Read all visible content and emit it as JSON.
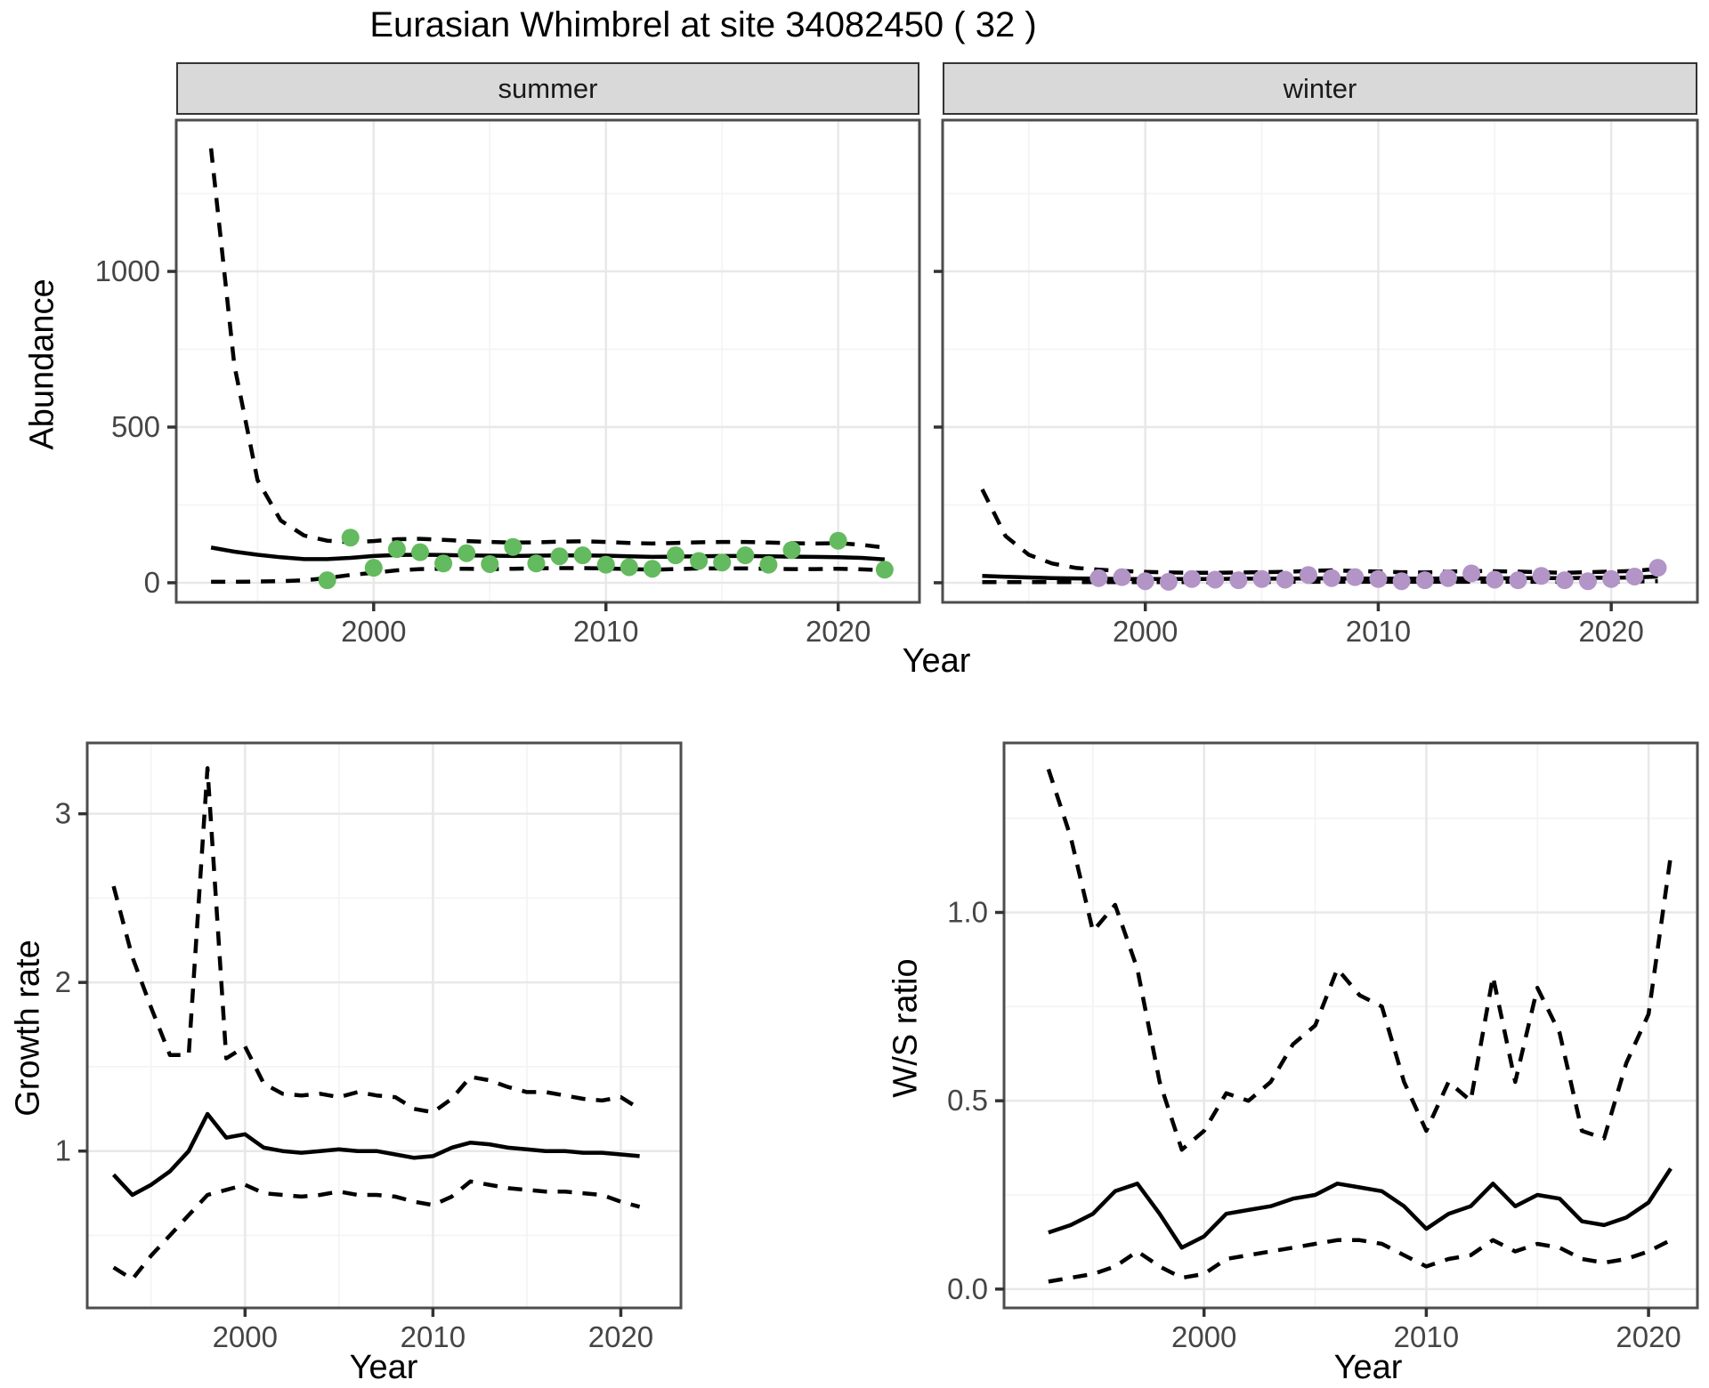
{
  "figure": {
    "title": "Eurasian Whimbrel at site 34082450 ( 32 )",
    "species": "Eurasian Whimbrel",
    "site_id": "34082450",
    "site_code": "32"
  },
  "facets": {
    "summer": "summer",
    "winter": "winter"
  },
  "axes": {
    "top_y_label": "Abundance",
    "top_x_label": "Year",
    "growth_y_label": "Growth rate",
    "growth_x_label": "Year",
    "ws_y_label": "W/S ratio",
    "ws_x_label": "Year"
  },
  "colors": {
    "summer_points": "#64ba5f",
    "winter_points": "#b294c7",
    "line": "#000000",
    "panel_border": "#4d4d4d",
    "grid_major": "#e8e8e8",
    "grid_minor": "#f4f4f4",
    "strip_bg": "#d9d9d9",
    "tick_text": "#454545"
  },
  "chart_data": [
    {
      "id": "abundance-summer",
      "type": "line",
      "title": "summer",
      "xlabel": "Year",
      "ylabel": "Abundance",
      "xlim": [
        1991.5,
        2023.5
      ],
      "ylim": [
        -63,
        1486
      ],
      "x_ticks": {
        "values": [
          2000,
          2010,
          2020
        ],
        "labels": [
          "2000",
          "2010",
          "2020"
        ]
      },
      "y_ticks": {
        "values": [
          0,
          500,
          1000
        ],
        "labels": [
          "0",
          "500",
          "1000"
        ]
      },
      "x_minor": [
        1995,
        2005,
        2015
      ],
      "y_minor": [
        250,
        750,
        1250
      ],
      "grid": true,
      "years": [
        1993,
        1994,
        1995,
        1996,
        1997,
        1998,
        1999,
        2000,
        2001,
        2002,
        2003,
        2004,
        2005,
        2006,
        2007,
        2008,
        2009,
        2010,
        2011,
        2012,
        2013,
        2014,
        2015,
        2016,
        2017,
        2018,
        2019,
        2020,
        2021,
        2022
      ],
      "series": [
        {
          "name": "upper_ci",
          "style": "dashed",
          "values": [
            1395,
            700,
            330,
            200,
            152,
            135,
            130,
            134,
            140,
            141,
            138,
            134,
            131,
            129,
            130,
            132,
            133,
            131,
            128,
            126,
            128,
            130,
            131,
            131,
            129,
            127,
            126,
            127,
            122,
            113
          ]
        },
        {
          "name": "fit",
          "style": "solid",
          "values": [
            113,
            100,
            90,
            82,
            76,
            76,
            80,
            86,
            89,
            90,
            89,
            88,
            87,
            86,
            87,
            88,
            88,
            87,
            85,
            83,
            84,
            85,
            86,
            86,
            85,
            84,
            83,
            82,
            80,
            75
          ]
        },
        {
          "name": "lower_ci",
          "style": "dashed",
          "values": [
            3,
            3,
            4,
            5,
            8,
            15,
            25,
            32,
            40,
            44,
            45,
            45,
            44,
            45,
            46,
            47,
            47,
            46,
            44,
            42,
            44,
            46,
            46,
            46,
            45,
            44,
            44,
            45,
            43,
            40
          ]
        },
        {
          "name": "observations",
          "style": "points",
          "color": "#64ba5f",
          "x": [
            1998,
            1999,
            2000,
            2001,
            2002,
            2003,
            2004,
            2005,
            2006,
            2007,
            2008,
            2009,
            2010,
            2011,
            2012,
            2013,
            2014,
            2015,
            2016,
            2017,
            2018,
            2020,
            2022
          ],
          "values": [
            8,
            145,
            48,
            108,
            98,
            62,
            95,
            60,
            115,
            62,
            85,
            88,
            58,
            50,
            45,
            88,
            70,
            65,
            88,
            58,
            105,
            135,
            42
          ]
        }
      ]
    },
    {
      "id": "abundance-winter",
      "type": "line",
      "title": "winter",
      "xlabel": "Year",
      "ylabel": "Abundance",
      "xlim": [
        1991.3,
        2023.7
      ],
      "ylim": [
        -63,
        1486
      ],
      "x_ticks": {
        "values": [
          2000,
          2010,
          2020
        ],
        "labels": [
          "2000",
          "2010",
          "2020"
        ]
      },
      "y_ticks": {
        "values": [
          0,
          500,
          1000
        ],
        "labels": []
      },
      "x_minor": [
        1995,
        2005,
        2015
      ],
      "y_minor": [
        250,
        750,
        1250
      ],
      "grid": true,
      "years": [
        1993,
        1994,
        1995,
        1996,
        1997,
        1998,
        1999,
        2000,
        2001,
        2002,
        2003,
        2004,
        2005,
        2006,
        2007,
        2008,
        2009,
        2010,
        2011,
        2012,
        2013,
        2014,
        2015,
        2016,
        2017,
        2018,
        2019,
        2020,
        2021,
        2022
      ],
      "series": [
        {
          "name": "upper_ci",
          "style": "dashed",
          "values": [
            300,
            150,
            90,
            62,
            48,
            42,
            38,
            35,
            33,
            32,
            32,
            33,
            34,
            35,
            38,
            40,
            38,
            36,
            34,
            33,
            36,
            38,
            37,
            36,
            34,
            32,
            34,
            36,
            38,
            45
          ]
        },
        {
          "name": "fit",
          "style": "solid",
          "values": [
            22,
            19,
            17,
            15,
            14,
            13,
            12,
            12,
            12,
            12,
            12,
            13,
            13,
            13,
            14,
            14,
            14,
            13,
            13,
            13,
            14,
            14,
            14,
            15,
            15,
            15,
            16,
            16,
            17,
            20
          ]
        },
        {
          "name": "lower_ci",
          "style": "dashed",
          "values": [
            2,
            2,
            2,
            2,
            2,
            2,
            2,
            2,
            2,
            2,
            2,
            2,
            2,
            3,
            3,
            3,
            3,
            3,
            3,
            3,
            3,
            3,
            3,
            3,
            3,
            3,
            3,
            3,
            4,
            5
          ]
        },
        {
          "name": "observations",
          "style": "points",
          "color": "#b294c7",
          "x": [
            1998,
            1999,
            2000,
            2001,
            2002,
            2003,
            2004,
            2005,
            2006,
            2007,
            2008,
            2009,
            2010,
            2011,
            2012,
            2013,
            2014,
            2015,
            2016,
            2017,
            2018,
            2019,
            2020,
            2021,
            2022
          ],
          "values": [
            15,
            18,
            5,
            3,
            12,
            10,
            8,
            12,
            10,
            25,
            15,
            18,
            12,
            5,
            8,
            15,
            30,
            10,
            8,
            22,
            8,
            5,
            12,
            20,
            48
          ]
        }
      ]
    },
    {
      "id": "growth",
      "type": "line",
      "title": "",
      "xlabel": "Year",
      "ylabel": "Growth rate",
      "xlim": [
        1991.6,
        2023.2
      ],
      "ylim": [
        0.07,
        3.42
      ],
      "x_ticks": {
        "values": [
          2000,
          2010,
          2020
        ],
        "labels": [
          "2000",
          "2010",
          "2020"
        ]
      },
      "y_ticks": {
        "values": [
          1,
          2,
          3
        ],
        "labels": [
          "1",
          "2",
          "3"
        ]
      },
      "x_minor": [
        1995,
        2005,
        2015
      ],
      "y_minor": [
        0.5,
        1.5,
        2.5
      ],
      "grid": true,
      "years": [
        1993,
        1994,
        1995,
        1996,
        1997,
        1998,
        1999,
        2000,
        2001,
        2002,
        2003,
        2004,
        2005,
        2006,
        2007,
        2008,
        2009,
        2010,
        2011,
        2012,
        2013,
        2014,
        2015,
        2016,
        2017,
        2018,
        2019,
        2020,
        2021
      ],
      "series": [
        {
          "name": "upper_ci",
          "style": "dashed",
          "values": [
            2.57,
            2.15,
            1.85,
            1.57,
            1.57,
            3.27,
            1.55,
            1.62,
            1.4,
            1.34,
            1.33,
            1.34,
            1.32,
            1.35,
            1.33,
            1.32,
            1.25,
            1.23,
            1.31,
            1.44,
            1.42,
            1.38,
            1.35,
            1.35,
            1.33,
            1.31,
            1.3,
            1.32,
            1.25
          ]
        },
        {
          "name": "fit",
          "style": "solid",
          "values": [
            0.86,
            0.74,
            0.8,
            0.88,
            1.0,
            1.22,
            1.08,
            1.1,
            1.02,
            1.0,
            0.99,
            1.0,
            1.01,
            1.0,
            1.0,
            0.98,
            0.96,
            0.97,
            1.02,
            1.05,
            1.04,
            1.02,
            1.01,
            1.0,
            1.0,
            0.99,
            0.99,
            0.98,
            0.97
          ]
        },
        {
          "name": "lower_ci",
          "style": "dashed",
          "values": [
            0.31,
            0.24,
            0.38,
            0.5,
            0.62,
            0.74,
            0.77,
            0.8,
            0.75,
            0.74,
            0.73,
            0.74,
            0.76,
            0.74,
            0.74,
            0.73,
            0.7,
            0.68,
            0.73,
            0.82,
            0.8,
            0.78,
            0.77,
            0.76,
            0.76,
            0.75,
            0.74,
            0.7,
            0.67
          ]
        }
      ]
    },
    {
      "id": "ws",
      "type": "line",
      "title": "",
      "xlabel": "Year",
      "ylabel": "W/S ratio",
      "xlim": [
        1991.0,
        2022.2
      ],
      "ylim": [
        -0.05,
        1.45
      ],
      "x_ticks": {
        "values": [
          2000,
          2010,
          2020
        ],
        "labels": [
          "2000",
          "2010",
          "2020"
        ]
      },
      "y_ticks": {
        "values": [
          0.0,
          0.5,
          1.0
        ],
        "labels": [
          "0.0",
          "0.5",
          "1.0"
        ]
      },
      "x_minor": [
        1995,
        2005,
        2015
      ],
      "y_minor": [
        0.25,
        0.75,
        1.25
      ],
      "grid": true,
      "years": [
        1993,
        1994,
        1995,
        1996,
        1997,
        1998,
        1999,
        2000,
        2001,
        2002,
        2003,
        2004,
        2005,
        2006,
        2007,
        2008,
        2009,
        2010,
        2011,
        2012,
        2013,
        2014,
        2015,
        2016,
        2017,
        2018,
        2019,
        2020,
        2021
      ],
      "series": [
        {
          "name": "upper_ci",
          "style": "dashed",
          "values": [
            1.38,
            1.2,
            0.95,
            1.02,
            0.85,
            0.55,
            0.37,
            0.42,
            0.52,
            0.5,
            0.55,
            0.65,
            0.7,
            0.85,
            0.78,
            0.75,
            0.55,
            0.42,
            0.55,
            0.5,
            0.83,
            0.55,
            0.8,
            0.68,
            0.42,
            0.4,
            0.6,
            0.73,
            1.15
          ]
        },
        {
          "name": "fit",
          "style": "solid",
          "values": [
            0.15,
            0.17,
            0.2,
            0.26,
            0.28,
            0.2,
            0.11,
            0.14,
            0.2,
            0.21,
            0.22,
            0.24,
            0.25,
            0.28,
            0.27,
            0.26,
            0.22,
            0.16,
            0.2,
            0.22,
            0.28,
            0.22,
            0.25,
            0.24,
            0.18,
            0.17,
            0.19,
            0.23,
            0.32
          ]
        },
        {
          "name": "lower_ci",
          "style": "dashed",
          "values": [
            0.02,
            0.03,
            0.04,
            0.06,
            0.1,
            0.06,
            0.03,
            0.04,
            0.08,
            0.09,
            0.1,
            0.11,
            0.12,
            0.13,
            0.13,
            0.12,
            0.09,
            0.06,
            0.08,
            0.09,
            0.13,
            0.1,
            0.12,
            0.11,
            0.08,
            0.07,
            0.08,
            0.1,
            0.13
          ]
        }
      ]
    }
  ]
}
